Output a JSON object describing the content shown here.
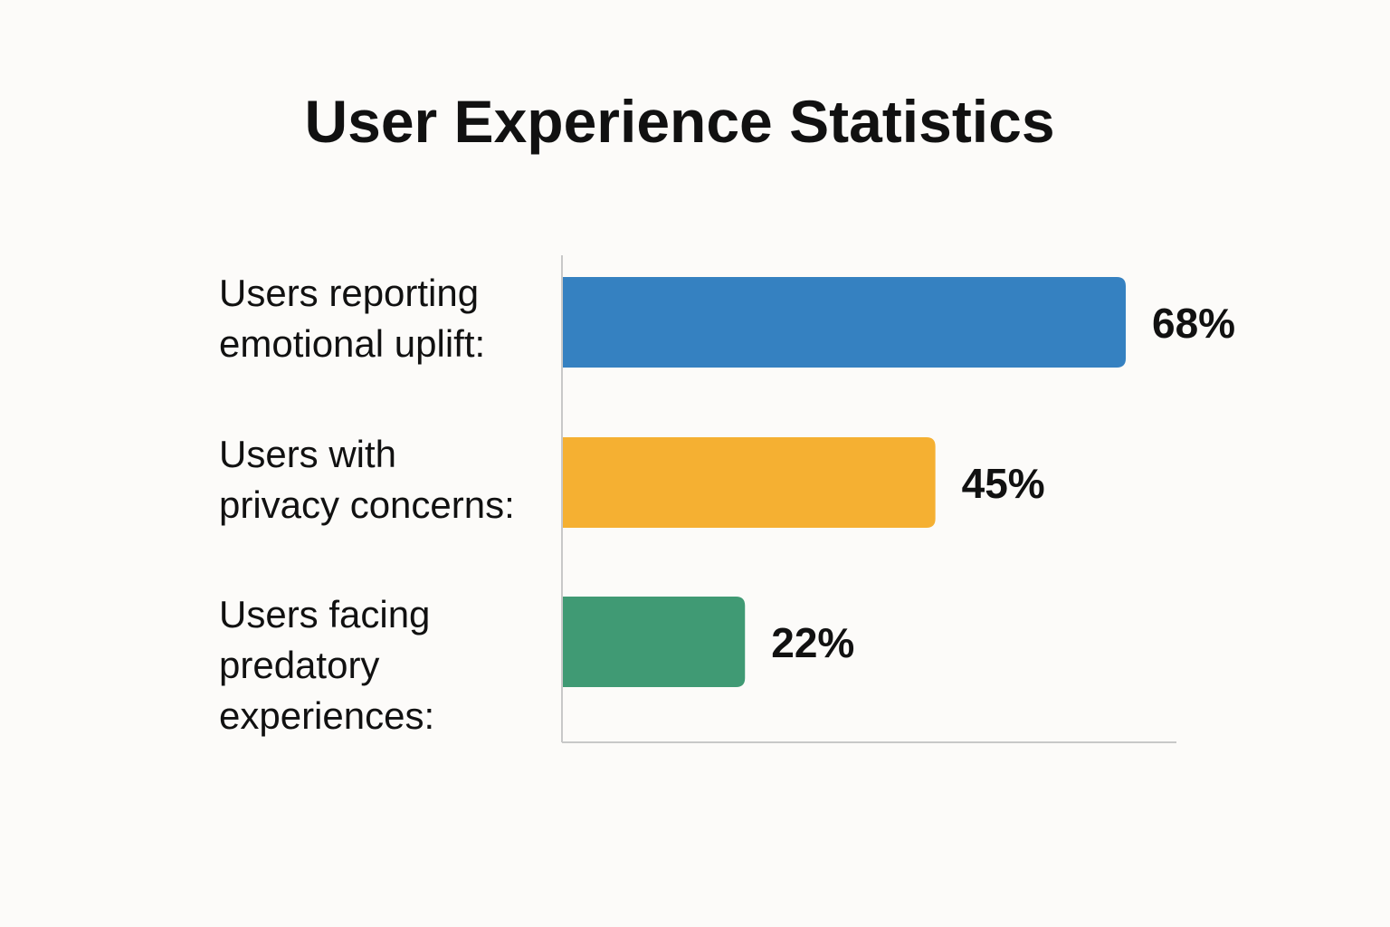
{
  "chart_data": {
    "type": "bar",
    "orientation": "horizontal",
    "title": "User Experience Statistics",
    "xlabel": "",
    "ylabel": "",
    "xlim": [
      0,
      75
    ],
    "grid": false,
    "legend": "none",
    "categories": [
      "Users reporting emotional uplift:",
      "Users with privacy concerns:",
      "Users facing predatory experiences:"
    ],
    "category_lines": [
      [
        "Users reporting",
        "emotional uplift:"
      ],
      [
        "Users with",
        "privacy concerns:"
      ],
      [
        "Users facing",
        "predatory",
        "experiences:"
      ]
    ],
    "values": [
      68,
      45,
      22
    ],
    "value_labels": [
      "68%",
      "45%",
      "22%"
    ],
    "colors": [
      "#3581c1",
      "#f5b032",
      "#409a74"
    ],
    "unit": "%"
  }
}
